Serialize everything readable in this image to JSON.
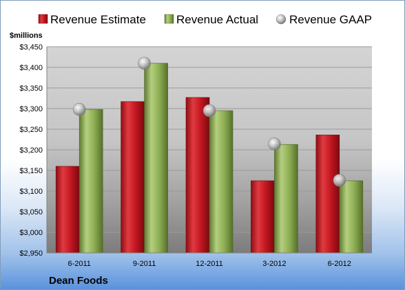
{
  "chart_data": {
    "type": "bar",
    "company": "Dean Foods",
    "ylabel": "$millions",
    "categories": [
      "6-2011",
      "9-2011",
      "12-2011",
      "3-2012",
      "6-2012"
    ],
    "series": [
      {
        "name": "Revenue Estimate",
        "kind": "bar",
        "color": "#c0151f",
        "values": [
          3160,
          3317,
          3327,
          3125,
          3236
        ]
      },
      {
        "name": "Revenue Actual",
        "kind": "bar",
        "color": "#8cac52",
        "values": [
          3298,
          3410,
          3295,
          3213,
          3125
        ]
      },
      {
        "name": "Revenue GAAP",
        "kind": "marker",
        "color": "#b4b4b4",
        "values": [
          3298,
          3410,
          3295,
          3214,
          3126
        ]
      }
    ],
    "ylim": [
      2950,
      3450
    ],
    "yticks": [
      "$2,950",
      "$3,000",
      "$3,050",
      "$3,100",
      "$3,150",
      "$3,200",
      "$3,250",
      "$3,300",
      "$3,350",
      "$3,400",
      "$3,450"
    ],
    "legend_position": "top",
    "grid": true
  }
}
